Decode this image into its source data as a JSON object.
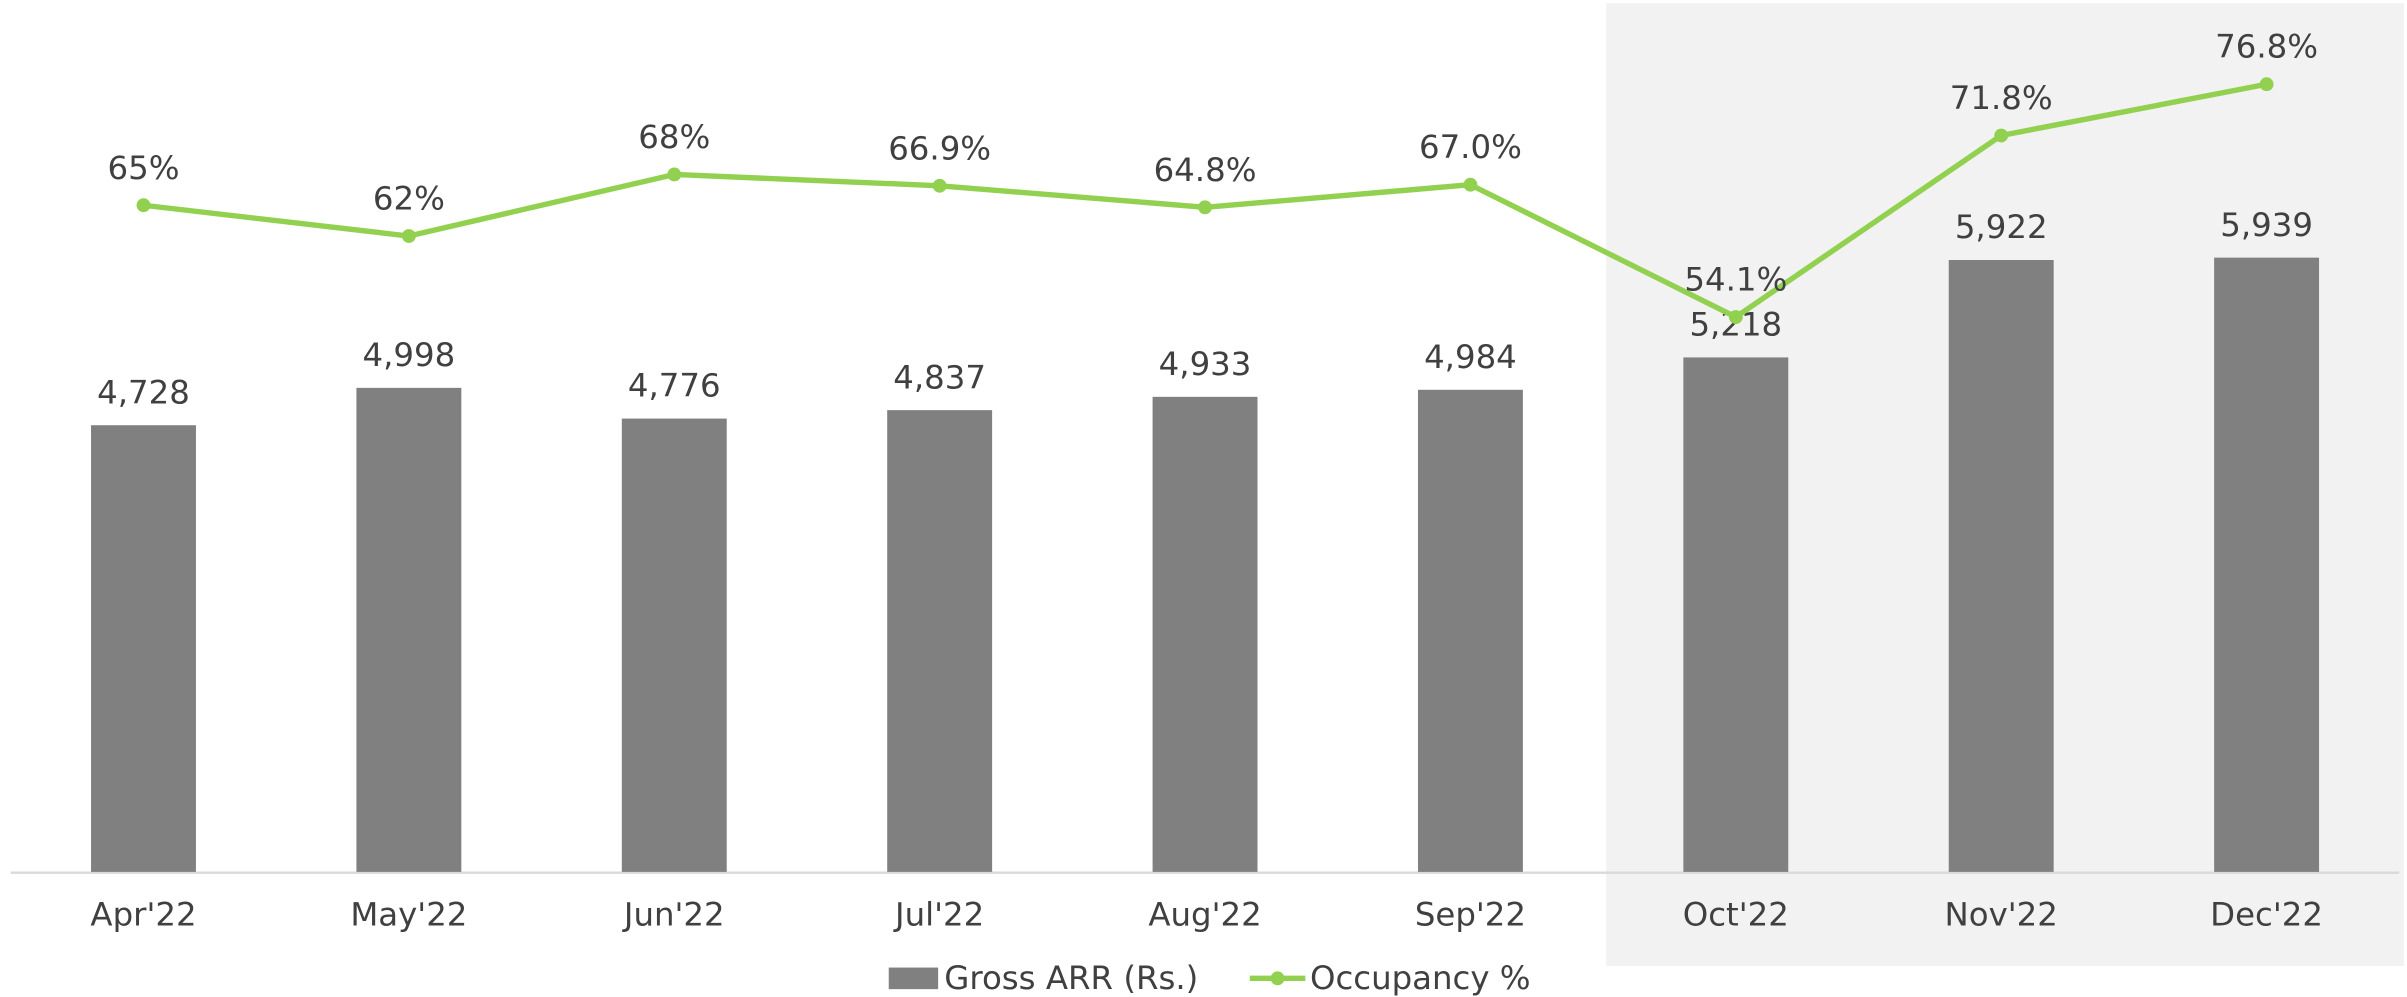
{
  "chart_data": {
    "type": "bar-line",
    "categories": [
      "Apr'22",
      "May'22",
      "Jun'22",
      "Jul'22",
      "Aug'22",
      "Sep'22",
      "Oct'22",
      "Nov'22",
      "Dec'22"
    ],
    "series": [
      {
        "name": "Gross ARR (Rs.)",
        "type": "bar",
        "color": "#808080",
        "values": [
          4728,
          4998,
          4776,
          4837,
          4933,
          4984,
          5218,
          5922,
          5939
        ],
        "value_labels": [
          "4,728",
          "4,998",
          "4,776",
          "4,837",
          "4,933",
          "4,984",
          "5,218",
          "5,922",
          "5,939"
        ]
      },
      {
        "name": "Occupancy %",
        "type": "line",
        "color": "#92d050",
        "axis": "y2",
        "values": [
          65,
          62,
          68,
          66.9,
          64.8,
          67.0,
          54.1,
          71.8,
          76.8
        ],
        "value_labels": [
          "65%",
          "62%",
          "68%",
          "66.9%",
          "64.8%",
          "67.0%",
          "54.1%",
          "71.8%",
          "76.8%"
        ]
      }
    ],
    "ylim": [
      1500,
      7800
    ],
    "y2lim": [
      0,
      85
    ],
    "legend": "bottom"
  }
}
